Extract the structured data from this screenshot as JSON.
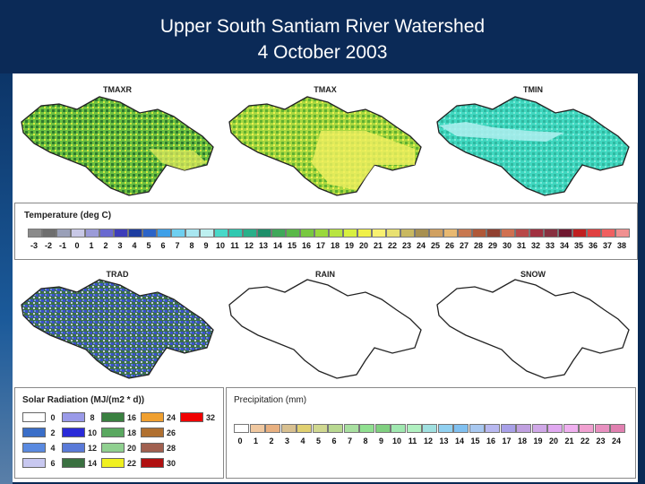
{
  "title": {
    "line1": "Upper South Santiam River Watershed",
    "line2": "4 October 2003"
  },
  "maps": [
    {
      "id": "tmaxr",
      "label": "TMAXR",
      "style": "green-yellow"
    },
    {
      "id": "tmax",
      "label": "TMAX",
      "style": "lime-yellow"
    },
    {
      "id": "tmin",
      "label": "TMIN",
      "style": "cyan"
    },
    {
      "id": "trad",
      "label": "TRAD",
      "style": "blue-green"
    },
    {
      "id": "rain",
      "label": "RAIN",
      "style": "empty"
    },
    {
      "id": "snow",
      "label": "SNOW",
      "style": "empty"
    }
  ],
  "temperature_legend": {
    "title": "Temperature (deg C)",
    "values": [
      "-3",
      "-2",
      "-1",
      "0",
      "1",
      "2",
      "3",
      "4",
      "5",
      "6",
      "7",
      "8",
      "9",
      "10",
      "11",
      "12",
      "13",
      "14",
      "15",
      "16",
      "17",
      "18",
      "19",
      "20",
      "21",
      "22",
      "23",
      "24",
      "25",
      "26",
      "27",
      "28",
      "29",
      "30",
      "31",
      "32",
      "33",
      "34",
      "35",
      "36",
      "37",
      "38"
    ],
    "colors": [
      "#8a8a8a",
      "#6e6e6e",
      "#9aa0b8",
      "#c8c8e6",
      "#9b9bd8",
      "#6a6ad0",
      "#3d3dba",
      "#1e3da0",
      "#2c64c8",
      "#3fa0e8",
      "#6ecff0",
      "#a8e6f0",
      "#bdf0f0",
      "#48d8c8",
      "#30c8b0",
      "#2ab08a",
      "#1e8f6a",
      "#3fa85a",
      "#5ab848",
      "#78c840",
      "#9ad83c",
      "#b8e440",
      "#d8f040",
      "#f0f048",
      "#f8f070",
      "#e8e070",
      "#c8b860",
      "#a89050",
      "#d0a060",
      "#e8b870",
      "#c87850",
      "#b05838",
      "#904030",
      "#d07050",
      "#b84848",
      "#a03040",
      "#883040",
      "#701830",
      "#c02020",
      "#e04040",
      "#f06060",
      "#f09090"
    ]
  },
  "solar_legend": {
    "title": "Solar Radiation (MJ/(m2 * d))",
    "items": [
      {
        "v": "0",
        "c": "#ffffff"
      },
      {
        "v": "2",
        "c": "#3a6ec8"
      },
      {
        "v": "4",
        "c": "#5a8ae0"
      },
      {
        "v": "6",
        "c": "#c8c8f0"
      },
      {
        "v": "8",
        "c": "#9a9ae8"
      },
      {
        "v": "10",
        "c": "#2a2ad8"
      },
      {
        "v": "12",
        "c": "#5a7ad8"
      },
      {
        "v": "14",
        "c": "#3a7040"
      },
      {
        "v": "16",
        "c": "#3a8040"
      },
      {
        "v": "18",
        "c": "#5aa860"
      },
      {
        "v": "20",
        "c": "#90d090"
      },
      {
        "v": "22",
        "c": "#f0f020"
      },
      {
        "v": "24",
        "c": "#f0a030"
      },
      {
        "v": "26",
        "c": "#b07030"
      },
      {
        "v": "28",
        "c": "#a06050"
      },
      {
        "v": "30",
        "c": "#b01010"
      },
      {
        "v": "32",
        "c": "#f00000"
      }
    ]
  },
  "precip_legend": {
    "title": "Precipitation (mm)",
    "values": [
      "0",
      "1",
      "2",
      "3",
      "4",
      "5",
      "6",
      "7",
      "8",
      "9",
      "10",
      "11",
      "12",
      "13",
      "14",
      "15",
      "16",
      "17",
      "18",
      "19",
      "20",
      "21",
      "22",
      "23",
      "24"
    ],
    "colors": [
      "#ffffff",
      "#f0c8a0",
      "#e8b080",
      "#d8c090",
      "#e0d070",
      "#d0d890",
      "#b8d890",
      "#a8e0a0",
      "#90e090",
      "#80d080",
      "#a0e8b0",
      "#b0f0c0",
      "#a0e0e0",
      "#90d0f0",
      "#80c0f0",
      "#a8c8f0",
      "#b8b8f0",
      "#a8a0e8",
      "#c0a0e0",
      "#d0a8e8",
      "#e0a8f0",
      "#f0b0f0",
      "#f0a0d0",
      "#e890c0",
      "#e080b0"
    ]
  },
  "colors": {
    "header_bg": "#0b2a57"
  }
}
